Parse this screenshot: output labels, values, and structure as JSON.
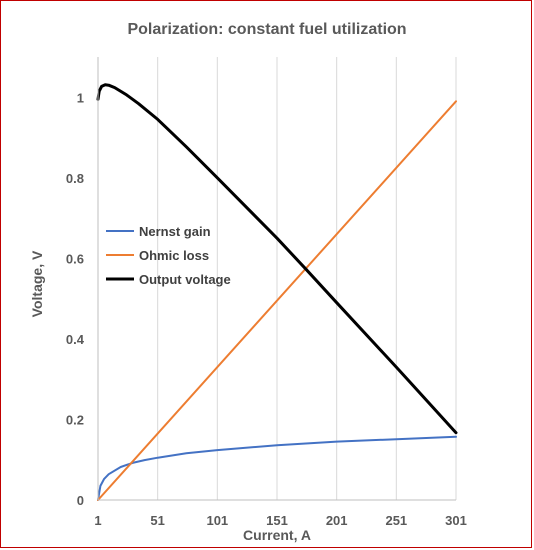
{
  "chart_data": {
    "type": "line",
    "title": "Polarization: constant fuel utilization",
    "xlabel": "Current, A",
    "ylabel": "Voltage, V",
    "xlim": [
      1,
      301
    ],
    "ylim": [
      0,
      1.1
    ],
    "x_ticks": [
      1,
      51,
      101,
      151,
      201,
      251,
      301
    ],
    "y_ticks": [
      0,
      0.2,
      0.4,
      0.6,
      0.8,
      1
    ],
    "y_tick_labels": [
      "0",
      "0.2",
      "0.4",
      "0.6",
      "0.8",
      "1"
    ],
    "grid": "vertical",
    "legend_position": "left-middle",
    "series": [
      {
        "name": "Nernst gain",
        "color": "#4472c4",
        "x": [
          1,
          3,
          6,
          10,
          20,
          30,
          40,
          51,
          75,
          101,
          151,
          201,
          251,
          301
        ],
        "y": [
          0.0,
          0.035,
          0.052,
          0.064,
          0.082,
          0.092,
          0.099,
          0.105,
          0.116,
          0.124,
          0.136,
          0.145,
          0.151,
          0.157
        ]
      },
      {
        "name": "Ohmic loss",
        "color": "#ed7d31",
        "x": [
          1,
          301
        ],
        "y": [
          0.0,
          0.99
        ]
      },
      {
        "name": "Output voltage",
        "color": "#000000",
        "x": [
          1,
          2,
          4,
          7,
          10,
          15,
          25,
          35,
          51,
          75,
          101,
          151,
          175,
          201,
          251,
          301
        ],
        "y": [
          0.995,
          1.015,
          1.027,
          1.031,
          1.03,
          1.024,
          1.006,
          0.984,
          0.945,
          0.877,
          0.8,
          0.65,
          0.574,
          0.49,
          0.33,
          0.167
        ]
      }
    ]
  }
}
